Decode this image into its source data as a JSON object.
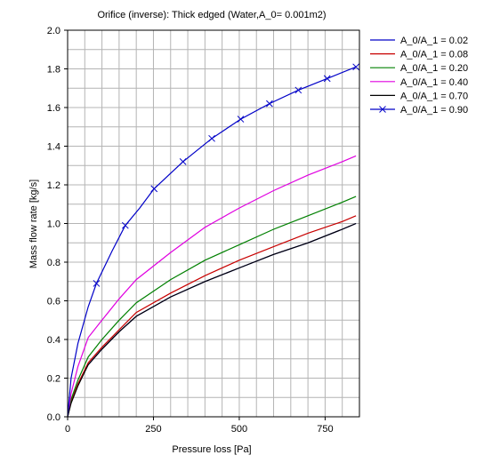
{
  "chart_data": {
    "type": "line",
    "title": "Orifice (inverse): Thick edged (Water,A_0= 0.001m2)",
    "xlabel": "Pressure loss [Pa]",
    "ylabel": "Mass flow rate [kg/s]",
    "xlim": [
      0,
      850
    ],
    "ylim": [
      0,
      2.0
    ],
    "x_ticks": [
      0,
      250,
      500,
      750
    ],
    "y_ticks": [
      0.0,
      0.2,
      0.4,
      0.6,
      0.8,
      1.0,
      1.2,
      1.4,
      1.6,
      1.8,
      2.0
    ],
    "x_tick_labels": [
      "0",
      "250",
      "500",
      "750"
    ],
    "y_tick_labels": [
      "0.0",
      "0.2",
      "0.4",
      "0.6",
      "0.8",
      "1.0",
      "1.2",
      "1.4",
      "1.6",
      "1.8",
      "2.0"
    ],
    "grid": true,
    "legend_position": "right",
    "series": [
      {
        "name": "A_0/A_1 = 0.02",
        "color": "#0000c8",
        "marker": "none",
        "x": [
          0,
          10,
          30,
          60,
          100,
          150,
          200,
          300,
          400,
          500,
          600,
          700,
          800,
          840
        ],
        "y": [
          0,
          0.08,
          0.17,
          0.27,
          0.35,
          0.44,
          0.52,
          0.62,
          0.7,
          0.77,
          0.84,
          0.9,
          0.97,
          1.0
        ]
      },
      {
        "name": "A_0/A_1 = 0.08",
        "color": "#c80000",
        "marker": "none",
        "x": [
          0,
          10,
          30,
          60,
          100,
          150,
          200,
          300,
          400,
          500,
          600,
          700,
          800,
          840
        ],
        "y": [
          0,
          0.08,
          0.17,
          0.28,
          0.36,
          0.45,
          0.54,
          0.64,
          0.73,
          0.81,
          0.88,
          0.95,
          1.01,
          1.04
        ]
      },
      {
        "name": "A_0/A_1 = 0.20",
        "color": "#008000",
        "marker": "none",
        "x": [
          0,
          10,
          30,
          60,
          100,
          150,
          200,
          300,
          400,
          500,
          600,
          700,
          800,
          840
        ],
        "y": [
          0,
          0.09,
          0.19,
          0.31,
          0.4,
          0.5,
          0.59,
          0.71,
          0.81,
          0.89,
          0.97,
          1.04,
          1.11,
          1.14
        ]
      },
      {
        "name": "A_0/A_1 = 0.40",
        "color": "#e000e0",
        "marker": "none",
        "x": [
          0,
          10,
          30,
          60,
          100,
          150,
          200,
          300,
          400,
          500,
          600,
          700,
          800,
          840
        ],
        "y": [
          0,
          0.12,
          0.26,
          0.41,
          0.5,
          0.61,
          0.71,
          0.85,
          0.98,
          1.08,
          1.17,
          1.25,
          1.32,
          1.35
        ]
      },
      {
        "name": "A_0/A_1 = 0.70",
        "color": "#000000",
        "marker": "none",
        "x": [
          0,
          10,
          30,
          60,
          100,
          150,
          200,
          300,
          400,
          500,
          600,
          700,
          800,
          840
        ],
        "y": [
          0,
          0.07,
          0.16,
          0.27,
          0.35,
          0.44,
          0.52,
          0.62,
          0.7,
          0.77,
          0.84,
          0.9,
          0.97,
          1.0
        ]
      },
      {
        "name": "A_0/A_1 = 0.90",
        "color": "#0000c8",
        "marker": "x",
        "x": [
          0,
          10,
          30,
          60,
          84,
          130,
          168,
          210,
          252,
          336,
          420,
          504,
          588,
          672,
          756,
          840
        ],
        "y": [
          0,
          0.2,
          0.38,
          0.57,
          0.69,
          0.86,
          0.99,
          1.08,
          1.18,
          1.32,
          1.44,
          1.54,
          1.62,
          1.69,
          1.75,
          1.81
        ],
        "marker_x": [
          84,
          168,
          252,
          336,
          420,
          504,
          588,
          672,
          756,
          840
        ]
      }
    ]
  }
}
